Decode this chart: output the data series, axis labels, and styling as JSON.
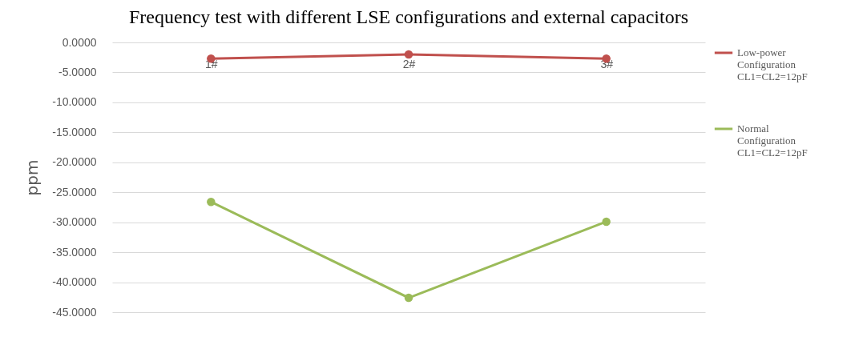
{
  "chart_data": {
    "type": "line",
    "title": "Frequency test with different LSE configurations and external capacitors",
    "ylabel": "ppm",
    "categories": [
      "1#",
      "2#",
      "3#"
    ],
    "series": [
      {
        "name": "Low-power Configuration CL1=CL2=12pF",
        "color": "#c0504d",
        "values": [
          -2.7,
          -2.0,
          -2.7
        ]
      },
      {
        "name": "Normal Configuration CL1=CL2=12pF",
        "color": "#9bbb59",
        "values": [
          -26.6,
          -42.6,
          -29.9
        ]
      }
    ],
    "ylim": [
      -45,
      0
    ],
    "yticks": [
      {
        "value": 0,
        "label": "0.0000"
      },
      {
        "value": -5,
        "label": "-5.0000"
      },
      {
        "value": -10,
        "label": "-10.0000"
      },
      {
        "value": -15,
        "label": "-15.0000"
      },
      {
        "value": -20,
        "label": "-20.0000"
      },
      {
        "value": -25,
        "label": "-25.0000"
      },
      {
        "value": -30,
        "label": "-30.0000"
      },
      {
        "value": -35,
        "label": "-35.0000"
      },
      {
        "value": -40,
        "label": "-40.0000"
      },
      {
        "value": -45,
        "label": "-45.0000"
      }
    ],
    "grid": "y",
    "legend": "right",
    "marker": "circle",
    "line_style": "solid"
  }
}
